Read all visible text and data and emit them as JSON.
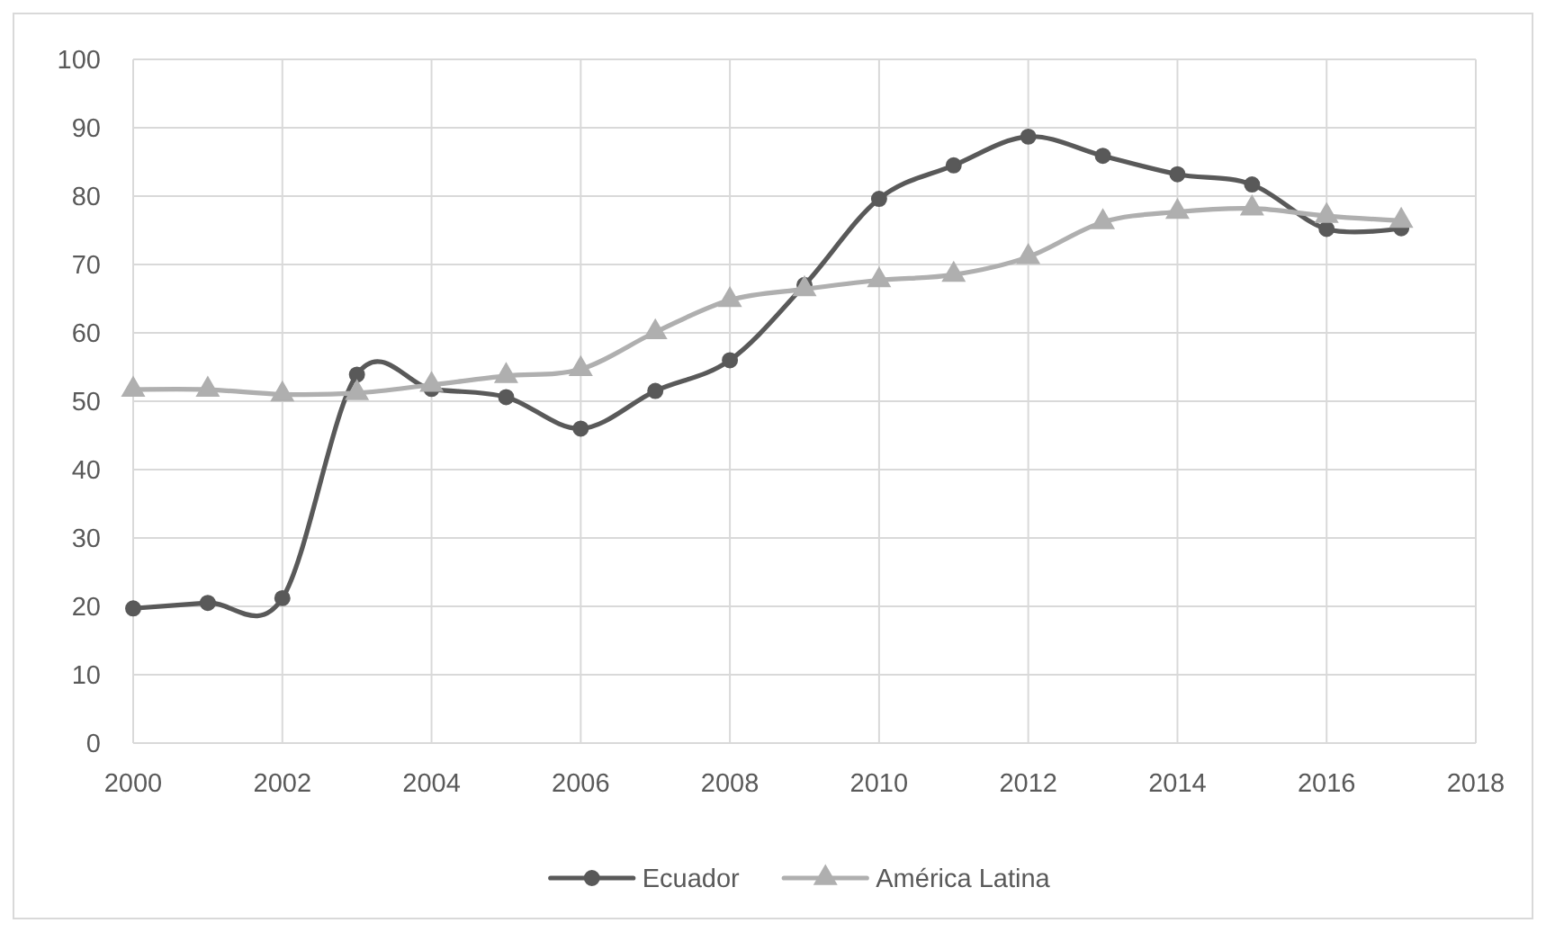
{
  "chart_data": {
    "type": "line",
    "x": [
      2000,
      2001,
      2002,
      2003,
      2004,
      2005,
      2006,
      2007,
      2008,
      2009,
      2010,
      2011,
      2012,
      2013,
      2014,
      2015,
      2016,
      2017
    ],
    "series": [
      {
        "name": "Ecuador",
        "color": "#595959",
        "marker": "circle",
        "values": [
          19.7,
          20.5,
          21.2,
          53.9,
          51.8,
          50.6,
          46.0,
          51.5,
          56.0,
          67.0,
          79.6,
          84.5,
          88.7,
          85.9,
          83.2,
          81.7,
          75.2,
          75.3
        ]
      },
      {
        "name": "América Latina",
        "color": "#afafaf",
        "marker": "triangle",
        "values": [
          51.7,
          51.7,
          51.0,
          51.2,
          52.4,
          53.7,
          54.7,
          60.1,
          64.8,
          66.4,
          67.7,
          68.5,
          71.1,
          76.2,
          77.7,
          78.2,
          77.1,
          76.4
        ]
      }
    ],
    "xlim": [
      2000,
      2018
    ],
    "xticks": [
      2000,
      2002,
      2004,
      2006,
      2008,
      2010,
      2012,
      2014,
      2016,
      2018
    ],
    "ylim": [
      0,
      100
    ],
    "yticks": [
      0,
      10,
      20,
      30,
      40,
      50,
      60,
      70,
      80,
      90,
      100
    ],
    "grid": true,
    "legend": "bottom"
  }
}
